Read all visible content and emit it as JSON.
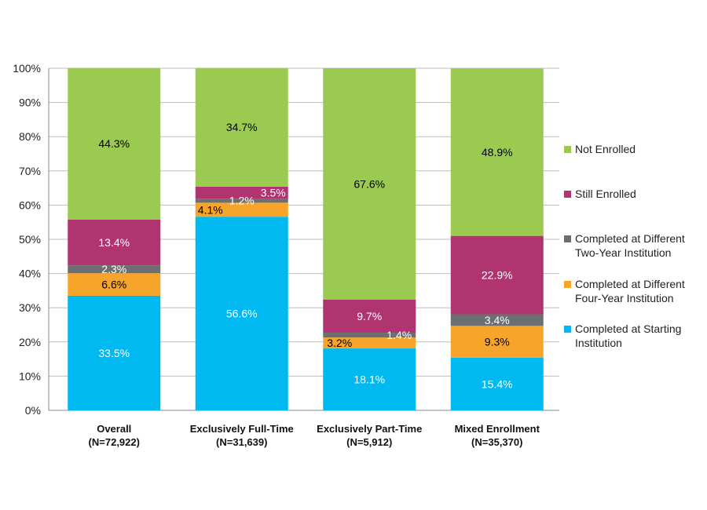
{
  "chart_data": {
    "type": "bar",
    "stacked": true,
    "title": "",
    "xlabel": "",
    "ylabel": "",
    "ylim": [
      0,
      100
    ],
    "yticks": [
      "0%",
      "10%",
      "20%",
      "30%",
      "40%",
      "50%",
      "60%",
      "70%",
      "80%",
      "90%",
      "100%"
    ],
    "grid": true,
    "legend_position": "right",
    "categories": [
      {
        "name": "Overall",
        "n": "(N=72,922)"
      },
      {
        "name": "Exclusively Full-Time",
        "n": "(N=31,639)"
      },
      {
        "name": "Exclusively Part-Time",
        "n": "(N=5,912)"
      },
      {
        "name": "Mixed Enrollment",
        "n": "(N=35,370)"
      }
    ],
    "series": [
      {
        "name": "Completed at Starting Institution",
        "color": "#00B9F0",
        "label_color": "#ffffff",
        "values": [
          33.5,
          56.6,
          18.1,
          15.4
        ]
      },
      {
        "name": "Completed at Different Four-Year Institution",
        "color": "#F7A52A",
        "label_color": "#000000",
        "values": [
          6.6,
          4.1,
          3.2,
          9.3
        ]
      },
      {
        "name": "Completed at Different Two-Year Institution",
        "color": "#6D6E71",
        "label_color": "#ffffff",
        "values": [
          2.3,
          1.2,
          1.4,
          3.4
        ]
      },
      {
        "name": "Still Enrolled",
        "color": "#B03470",
        "label_color": "#ffffff",
        "values": [
          13.4,
          3.5,
          9.7,
          22.9
        ]
      },
      {
        "name": "Not Enrolled",
        "color": "#9ACA4F",
        "label_color": "#000000",
        "values": [
          44.3,
          34.7,
          67.6,
          48.9
        ]
      }
    ]
  }
}
